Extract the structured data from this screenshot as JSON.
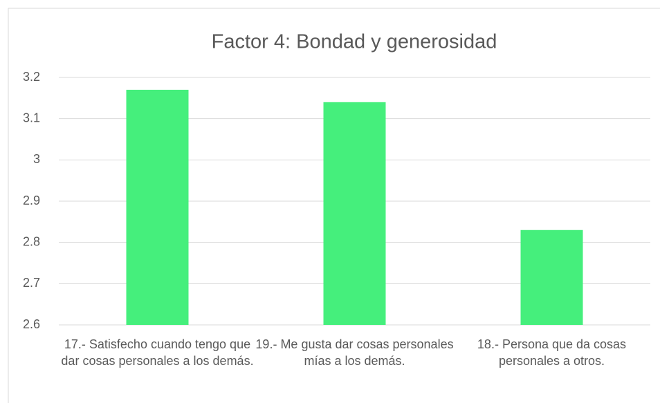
{
  "chart_data": {
    "type": "bar",
    "title": "Factor 4: Bondad y generosidad",
    "categories": [
      "17.- Satisfecho cuando tengo que dar cosas personales a los demás.",
      "19.- Me gusta dar cosas personales mías a los demás.",
      "18.- Persona que da cosas personales a otros."
    ],
    "values": [
      3.17,
      3.14,
      2.83
    ],
    "color": "#45ef7c",
    "ylim": [
      2.6,
      3.2
    ],
    "yticks": [
      2.6,
      2.7,
      2.8,
      2.9,
      3,
      3.1,
      3.2
    ],
    "grid": true
  }
}
